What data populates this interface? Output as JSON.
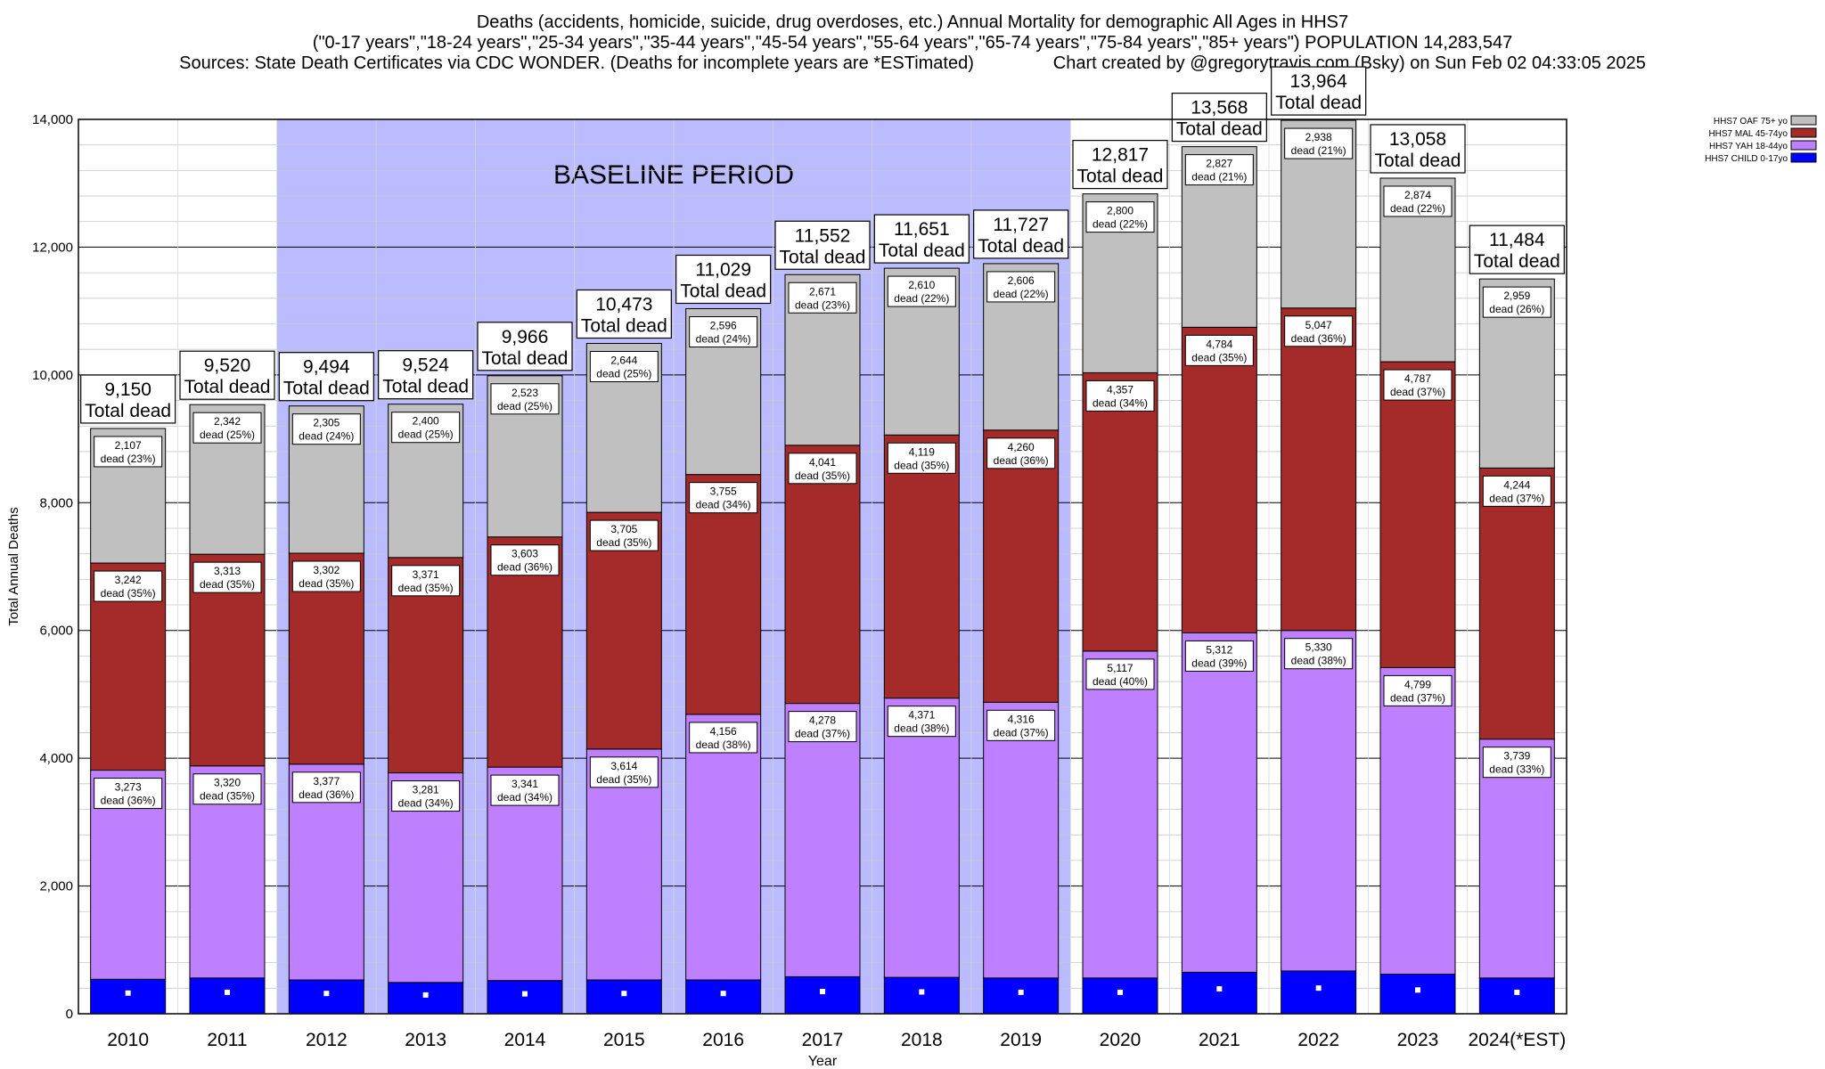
{
  "titles": {
    "line1": "Deaths (accidents, homicide, suicide, drug overdoses, etc.) Annual Mortality for demographic All Ages in HHS7",
    "line2": "(\"0-17 years\",\"18-24 years\",\"25-34 years\",\"35-44 years\",\"45-54 years\",\"55-64 years\",\"65-74 years\",\"75-84 years\",\"85+ years\") POPULATION 14,283,547",
    "line3": "Sources: State Death Certificates via CDC WONDER. (Deaths for incomplete years are *ESTimated)                Chart created by @gregorytravis.com (Bsky) on Sun Feb 02 04:33:05 2025"
  },
  "chart_data": {
    "type": "bar",
    "stacked": true,
    "xlabel": "Year",
    "ylabel": "Total Annual Deaths",
    "ylim": [
      0,
      14000
    ],
    "yticks": [
      0,
      2000,
      4000,
      6000,
      8000,
      10000,
      12000,
      14000
    ],
    "grid": true,
    "legend_position": "top-right",
    "categories": [
      "2010",
      "2011",
      "2012",
      "2013",
      "2014",
      "2015",
      "2016",
      "2017",
      "2018",
      "2019",
      "2020",
      "2021",
      "2022",
      "2023",
      "2024(*EST)"
    ],
    "baseline_period": {
      "label": "BASELINE PERIOD",
      "from": "2012",
      "to": "2019",
      "color": "#bbbbff"
    },
    "total_suffix": "Total dead",
    "totals": [
      "9,150",
      "9,520",
      "9,494",
      "9,524",
      "9,966",
      "10,473",
      "11,029",
      "11,552",
      "11,651",
      "11,727",
      "12,817",
      "13,568",
      "13,964",
      "13,058",
      "11,484"
    ],
    "series": [
      {
        "name": "HHS7 CHILD 0-17yo",
        "color": "#0000ff",
        "values": [
          540,
          560,
          530,
          490,
          520,
          530,
          530,
          580,
          570,
          560,
          560,
          650,
          670,
          620,
          560
        ]
      },
      {
        "name": "HHS7 YAH 18-44yo",
        "color": "#bf80ff",
        "values": [
          3273,
          3320,
          3377,
          3281,
          3341,
          3614,
          4156,
          4278,
          4371,
          4316,
          5117,
          5312,
          5330,
          4799,
          3739
        ],
        "labels": [
          [
            "3,273",
            "dead (36%)"
          ],
          [
            "3,320",
            "dead (35%)"
          ],
          [
            "3,377",
            "dead (36%)"
          ],
          [
            "3,281",
            "dead (34%)"
          ],
          [
            "3,341",
            "dead (34%)"
          ],
          [
            "3,614",
            "dead (35%)"
          ],
          [
            "4,156",
            "dead (38%)"
          ],
          [
            "4,278",
            "dead (37%)"
          ],
          [
            "4,371",
            "dead (38%)"
          ],
          [
            "4,316",
            "dead (37%)"
          ],
          [
            "5,117",
            "dead (40%)"
          ],
          [
            "5,312",
            "dead (39%)"
          ],
          [
            "5,330",
            "dead (38%)"
          ],
          [
            "4,799",
            "dead (37%)"
          ],
          [
            "3,739",
            "dead (33%)"
          ]
        ]
      },
      {
        "name": "HHS7 MAL 45-74yo",
        "color": "#a52a2a",
        "values": [
          3242,
          3313,
          3302,
          3371,
          3603,
          3705,
          3755,
          4041,
          4119,
          4260,
          4357,
          4784,
          5047,
          4787,
          4244
        ],
        "labels": [
          [
            "3,242",
            "dead (35%)"
          ],
          [
            "3,313",
            "dead (35%)"
          ],
          [
            "3,302",
            "dead (35%)"
          ],
          [
            "3,371",
            "dead (35%)"
          ],
          [
            "3,603",
            "dead (36%)"
          ],
          [
            "3,705",
            "dead (35%)"
          ],
          [
            "3,755",
            "dead (34%)"
          ],
          [
            "4,041",
            "dead (35%)"
          ],
          [
            "4,119",
            "dead (35%)"
          ],
          [
            "4,260",
            "dead (36%)"
          ],
          [
            "4,357",
            "dead (34%)"
          ],
          [
            "4,784",
            "dead (35%)"
          ],
          [
            "5,047",
            "dead (36%)"
          ],
          [
            "4,787",
            "dead (37%)"
          ],
          [
            "4,244",
            "dead (37%)"
          ]
        ]
      },
      {
        "name": "HHS7 OAF 75+ yo",
        "color": "#c0c0c0",
        "values": [
          2107,
          2342,
          2305,
          2400,
          2523,
          2644,
          2596,
          2671,
          2610,
          2606,
          2800,
          2827,
          2938,
          2874,
          2959
        ],
        "labels": [
          [
            "2,107",
            "dead (23%)"
          ],
          [
            "2,342",
            "dead (25%)"
          ],
          [
            "2,305",
            "dead (24%)"
          ],
          [
            "2,400",
            "dead (25%)"
          ],
          [
            "2,523",
            "dead (25%)"
          ],
          [
            "2,644",
            "dead (25%)"
          ],
          [
            "2,596",
            "dead (24%)"
          ],
          [
            "2,671",
            "dead (23%)"
          ],
          [
            "2,610",
            "dead (22%)"
          ],
          [
            "2,606",
            "dead (22%)"
          ],
          [
            "2,800",
            "dead (22%)"
          ],
          [
            "2,827",
            "dead (21%)"
          ],
          [
            "2,938",
            "dead (21%)"
          ],
          [
            "2,874",
            "dead (22%)"
          ],
          [
            "2,959",
            "dead (26%)"
          ]
        ]
      }
    ],
    "legend_order": [
      "HHS7 OAF 75+ yo",
      "HHS7 MAL 45-74yo",
      "HHS7 YAH 18-44yo",
      "HHS7 CHILD 0-17yo"
    ]
  }
}
